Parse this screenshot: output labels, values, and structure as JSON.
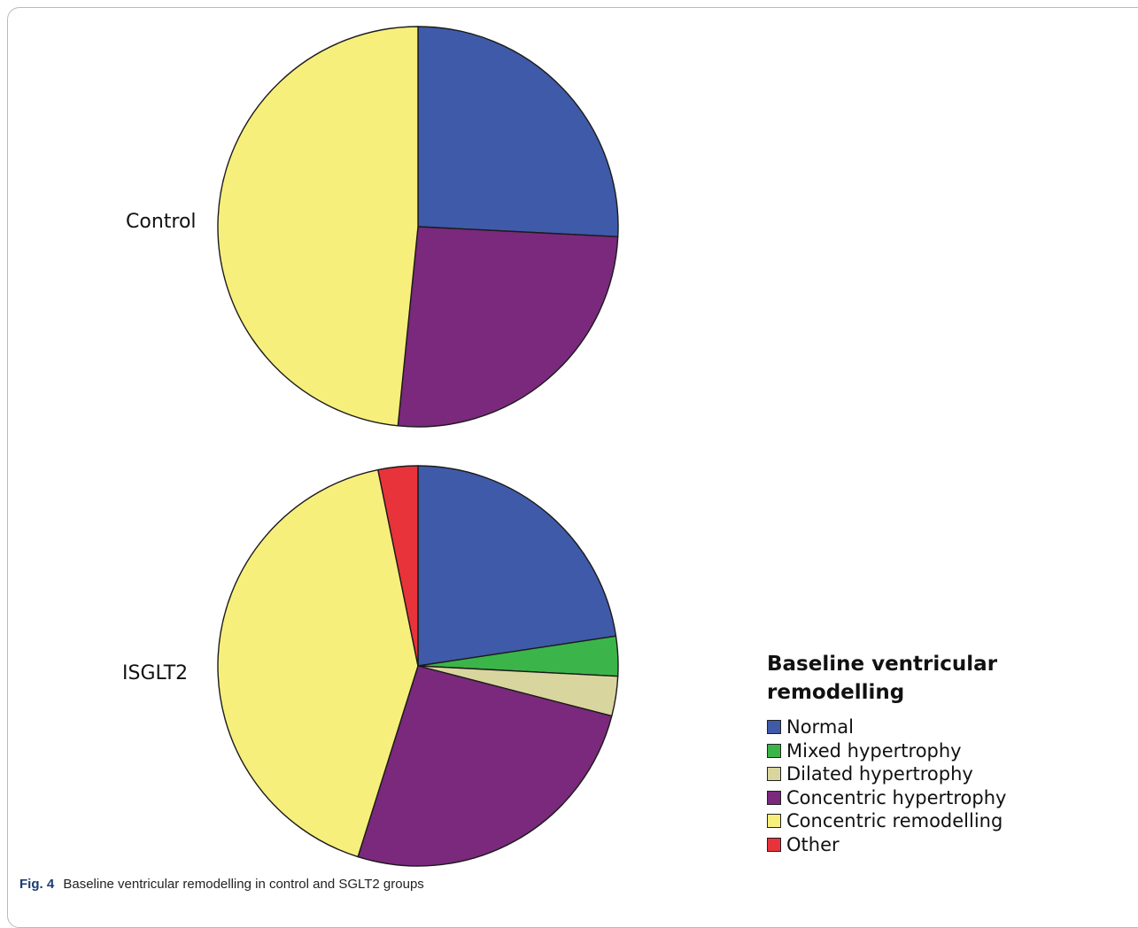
{
  "chart_data": {
    "type": "pie",
    "legend": {
      "title": "Baseline ventricular remodelling",
      "placement": "right",
      "entries": [
        {
          "label": "Normal",
          "color": "#3f5aa8"
        },
        {
          "label": "Mixed hypertrophy",
          "color": "#3bb54a"
        },
        {
          "label": "Dilated hypertrophy",
          "color": "#d9d59e"
        },
        {
          "label": "Concentric hypertrophy",
          "color": "#7a297c"
        },
        {
          "label": "Concentric remodelling",
          "color": "#f7ef7c"
        },
        {
          "label": "Other",
          "color": "#e8333a"
        }
      ]
    },
    "pies": [
      {
        "label": "Control",
        "slices": [
          {
            "category": "Normal",
            "percent": 25.8
          },
          {
            "category": "Mixed hypertrophy",
            "percent": 0
          },
          {
            "category": "Dilated hypertrophy",
            "percent": 0
          },
          {
            "category": "Concentric hypertrophy",
            "percent": 25.8
          },
          {
            "category": "Concentric remodelling",
            "percent": 48.4
          },
          {
            "category": "Other",
            "percent": 0
          }
        ]
      },
      {
        "label": "ISGLT2",
        "slices": [
          {
            "category": "Normal",
            "percent": 22.6
          },
          {
            "category": "Mixed hypertrophy",
            "percent": 3.2
          },
          {
            "category": "Dilated hypertrophy",
            "percent": 3.2
          },
          {
            "category": "Concentric hypertrophy",
            "percent": 25.8
          },
          {
            "category": "Concentric remodelling",
            "percent": 41.9
          },
          {
            "category": "Other",
            "percent": 3.2
          }
        ]
      }
    ]
  },
  "caption": {
    "label": "Fig. 4",
    "text": "Baseline ventricular remodelling in control and SGLT2 groups"
  }
}
